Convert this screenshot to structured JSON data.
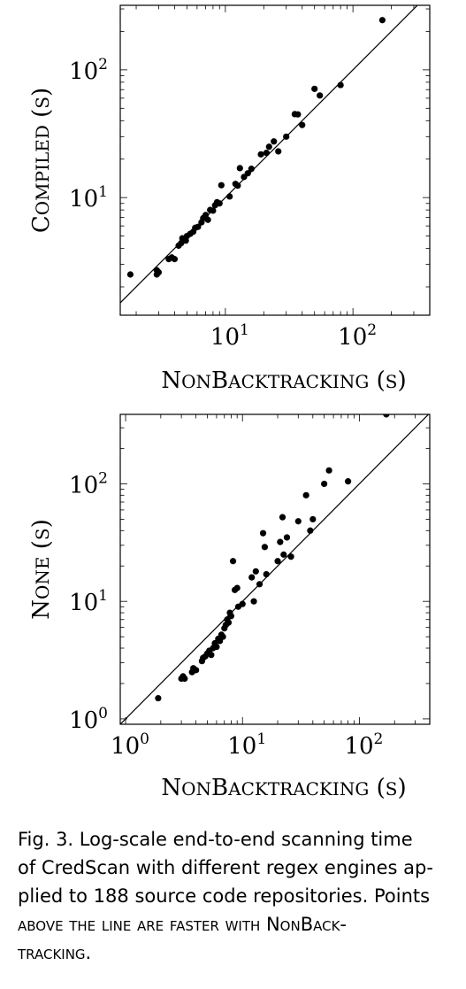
{
  "chart_data": [
    {
      "type": "scatter",
      "xlabel": "NonBacktracking (s)",
      "ylabel": "Compiled (s)",
      "xscale": "log",
      "yscale": "log",
      "xlim": [
        1.5,
        400
      ],
      "ylim": [
        1.2,
        320
      ],
      "xticks": [
        {
          "label": "10",
          "exp": "1"
        },
        {
          "label": "10",
          "exp": "2"
        }
      ],
      "yticks": [
        {
          "label": "10",
          "exp": "1"
        },
        {
          "label": "10",
          "exp": "2"
        }
      ],
      "reference_line": "y = x",
      "grid": false,
      "points": [
        [
          1.8,
          2.5
        ],
        [
          2.9,
          2.5
        ],
        [
          2.9,
          2.7
        ],
        [
          3.0,
          2.6
        ],
        [
          3.6,
          3.3
        ],
        [
          3.8,
          3.4
        ],
        [
          4.0,
          3.3
        ],
        [
          4.3,
          4.2
        ],
        [
          4.5,
          4.4
        ],
        [
          4.6,
          4.8
        ],
        [
          4.9,
          4.6
        ],
        [
          5.0,
          5.0
        ],
        [
          5.3,
          5.2
        ],
        [
          5.6,
          5.4
        ],
        [
          5.8,
          5.8
        ],
        [
          6.1,
          5.9
        ],
        [
          6.5,
          6.4
        ],
        [
          6.7,
          6.9
        ],
        [
          7.0,
          7.3
        ],
        [
          7.3,
          6.7
        ],
        [
          7.6,
          8.0
        ],
        [
          8.0,
          7.9
        ],
        [
          8.3,
          8.7
        ],
        [
          8.6,
          9.2
        ],
        [
          9.0,
          9.0
        ],
        [
          9.3,
          12.5
        ],
        [
          10.8,
          10.2
        ],
        [
          12.0,
          12.8
        ],
        [
          12.5,
          12.4
        ],
        [
          13.0,
          17.0
        ],
        [
          14.0,
          14.5
        ],
        [
          15.0,
          15.5
        ],
        [
          16.0,
          16.8
        ],
        [
          19.0,
          21.8
        ],
        [
          21.0,
          22.4
        ],
        [
          22.0,
          25.0
        ],
        [
          24.0,
          27.5
        ],
        [
          26.0,
          23.0
        ],
        [
          30.0,
          30.0
        ],
        [
          35.0,
          45.0
        ],
        [
          37.0,
          44.8
        ],
        [
          40.0,
          37.0
        ],
        [
          50.0,
          71.0
        ],
        [
          55.0,
          63.0
        ],
        [
          80.0,
          76.0
        ],
        [
          170.0,
          245.0
        ]
      ]
    },
    {
      "type": "scatter",
      "xlabel": "NonBacktracking (s)",
      "ylabel": "None (s)",
      "xscale": "log",
      "yscale": "log",
      "xlim": [
        0.9,
        400
      ],
      "ylim": [
        0.9,
        390
      ],
      "xticks": [
        {
          "label": "10",
          "exp": "0"
        },
        {
          "label": "10",
          "exp": "1"
        },
        {
          "label": "10",
          "exp": "2"
        }
      ],
      "yticks": [
        {
          "label": "10",
          "exp": "0"
        },
        {
          "label": "10",
          "exp": "1"
        },
        {
          "label": "10",
          "exp": "2"
        }
      ],
      "reference_line": "y = x",
      "grid": false,
      "points": [
        [
          1.9,
          1.5
        ],
        [
          3.0,
          2.2
        ],
        [
          3.1,
          2.3
        ],
        [
          3.2,
          2.2
        ],
        [
          3.7,
          2.5
        ],
        [
          3.8,
          2.7
        ],
        [
          4.0,
          2.6
        ],
        [
          4.5,
          3.1
        ],
        [
          4.6,
          3.3
        ],
        [
          4.8,
          3.4
        ],
        [
          5.0,
          3.6
        ],
        [
          5.2,
          3.8
        ],
        [
          5.4,
          3.5
        ],
        [
          5.6,
          4.0
        ],
        [
          5.8,
          4.4
        ],
        [
          6.0,
          4.1
        ],
        [
          6.2,
          4.8
        ],
        [
          6.4,
          4.6
        ],
        [
          6.6,
          5.2
        ],
        [
          6.8,
          5.0
        ],
        [
          7.0,
          5.9
        ],
        [
          7.2,
          6.3
        ],
        [
          7.4,
          7.0
        ],
        [
          7.6,
          6.6
        ],
        [
          7.8,
          8.0
        ],
        [
          8.0,
          7.5
        ],
        [
          8.3,
          22.0
        ],
        [
          8.6,
          12.5
        ],
        [
          9.0,
          13.0
        ],
        [
          9.2,
          9.0
        ],
        [
          10.0,
          9.5
        ],
        [
          12.0,
          16.0
        ],
        [
          12.5,
          10.0
        ],
        [
          13.0,
          18.0
        ],
        [
          14.0,
          14.0
        ],
        [
          15.0,
          38.0
        ],
        [
          15.5,
          29.0
        ],
        [
          16.0,
          17.0
        ],
        [
          20.0,
          22.0
        ],
        [
          21.0,
          32.0
        ],
        [
          22.0,
          52.0
        ],
        [
          22.5,
          25.0
        ],
        [
          24.0,
          35.0
        ],
        [
          26.0,
          24.0
        ],
        [
          30.0,
          48.0
        ],
        [
          35.0,
          80.0
        ],
        [
          38.0,
          40.0
        ],
        [
          40.0,
          50.0
        ],
        [
          50.0,
          100.0
        ],
        [
          55.0,
          130.0
        ],
        [
          80.0,
          105.0
        ],
        [
          170.0,
          390.0
        ]
      ]
    }
  ],
  "caption": {
    "lines": [
      "Fig. 3.  Log-scale end-to-end scanning time",
      "of CredScan with different regex engines ap-",
      "plied to 188 source code repositories. Points",
      "above the line are faster with NonBack-",
      "tracking."
    ]
  }
}
